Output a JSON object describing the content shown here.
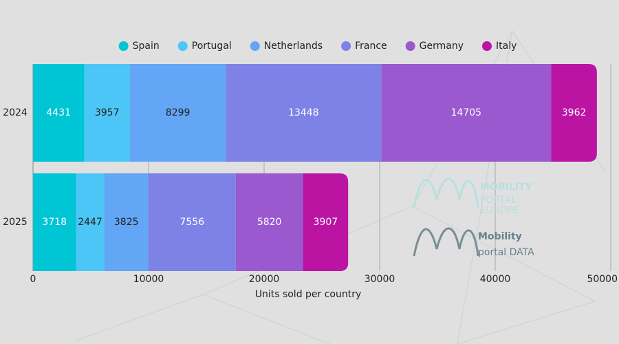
{
  "chart_data": {
    "type": "stacked-bar-horizontal",
    "categories": [
      "2024",
      "2025"
    ],
    "series": [
      {
        "name": "Spain",
        "color": "#00c5d4",
        "values": [
          4431,
          3718
        ]
      },
      {
        "name": "Portugal",
        "color": "#4cc6f6",
        "values": [
          3957,
          2447
        ]
      },
      {
        "name": "Netherlands",
        "color": "#63a6f6",
        "values": [
          8299,
          3825
        ]
      },
      {
        "name": "France",
        "color": "#7e82e6",
        "values": [
          13448,
          7556
        ]
      },
      {
        "name": "Germany",
        "color": "#9a59cf",
        "values": [
          14705,
          5820
        ]
      },
      {
        "name": "Italy",
        "color": "#bb14a3",
        "values": [
          3962,
          3907
        ]
      }
    ],
    "xlim": [
      0,
      50000
    ],
    "xticks": [
      0,
      10000,
      20000,
      30000,
      40000,
      50000
    ],
    "xlabel": "Units sold per country",
    "grid": true,
    "legend": "top"
  },
  "watermarks": [
    {
      "lines": [
        "MOBILITY",
        "PORTAL",
        "EUROPE"
      ]
    },
    {
      "lines": [
        "Mobility",
        "portal DATA"
      ]
    }
  ]
}
